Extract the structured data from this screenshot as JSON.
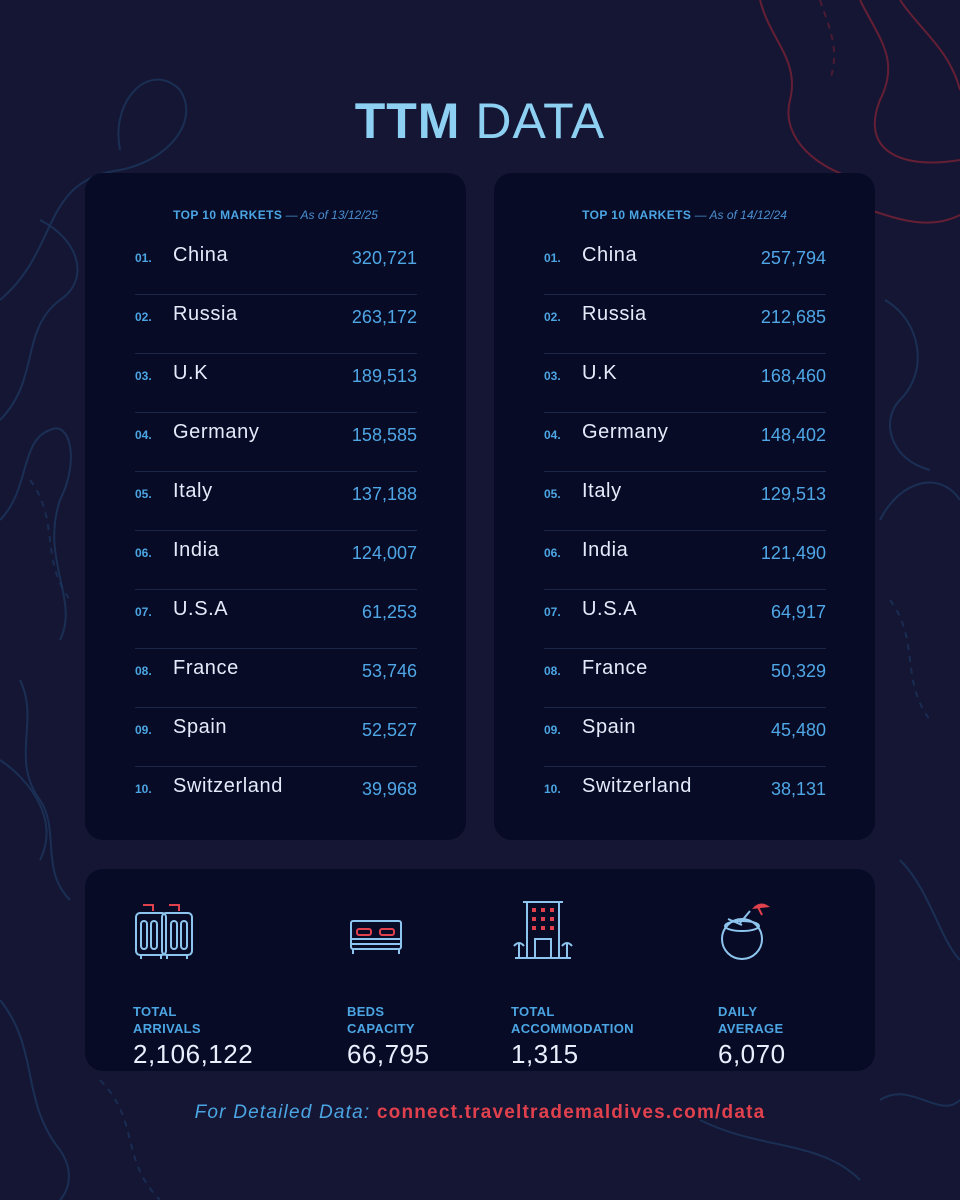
{
  "title": {
    "bold": "TTM",
    "light": "DATA"
  },
  "colors": {
    "background": "#141634",
    "panel": "#070b26",
    "accent_blue": "#4ca5e3",
    "accent_red": "#e1404d"
  },
  "panels": [
    {
      "heading": "TOP 10 MARKETS",
      "date": " — As of 13/12/25",
      "rows": [
        {
          "rank": "01.",
          "name": "China",
          "value": "320,721"
        },
        {
          "rank": "02.",
          "name": "Russia",
          "value": "263,172"
        },
        {
          "rank": "03.",
          "name": "U.K",
          "value": "189,513"
        },
        {
          "rank": "04.",
          "name": "Germany",
          "value": "158,585"
        },
        {
          "rank": "05.",
          "name": "Italy",
          "value": "137,188"
        },
        {
          "rank": "06.",
          "name": "India",
          "value": "124,007"
        },
        {
          "rank": "07.",
          "name": "U.S.A",
          "value": "61,253"
        },
        {
          "rank": "08.",
          "name": "France",
          "value": "53,746"
        },
        {
          "rank": "09.",
          "name": "Spain",
          "value": "52,527"
        },
        {
          "rank": "10.",
          "name": "Switzerland",
          "value": "39,968"
        }
      ]
    },
    {
      "heading": "TOP 10 MARKETS",
      "date": " — As of 14/12/24",
      "rows": [
        {
          "rank": "01.",
          "name": "China",
          "value": "257,794"
        },
        {
          "rank": "02.",
          "name": "Russia",
          "value": "212,685"
        },
        {
          "rank": "03.",
          "name": "U.K",
          "value": "168,460"
        },
        {
          "rank": "04.",
          "name": "Germany",
          "value": "148,402"
        },
        {
          "rank": "05.",
          "name": "Italy",
          "value": "129,513"
        },
        {
          "rank": "06.",
          "name": "India",
          "value": "121,490"
        },
        {
          "rank": "07.",
          "name": "U.S.A",
          "value": "64,917"
        },
        {
          "rank": "08.",
          "name": "France",
          "value": "50,329"
        },
        {
          "rank": "09.",
          "name": "Spain",
          "value": "45,480"
        },
        {
          "rank": "10.",
          "name": "Switzerland",
          "value": "38,131"
        }
      ]
    }
  ],
  "stats": [
    {
      "icon": "luggage-icon",
      "label_line1": "TOTAL",
      "label_line2": "ARRIVALS",
      "value": "2,106,122"
    },
    {
      "icon": "bed-icon",
      "label_line1": "BEDS",
      "label_line2": "CAPACITY",
      "value": "66,795"
    },
    {
      "icon": "hotel-building-icon",
      "label_line1": "TOTAL",
      "label_line2": "ACCOMMODATION",
      "value": "1,315"
    },
    {
      "icon": "coconut-drink-icon",
      "label_line1": "DAILY",
      "label_line2": "AVERAGE",
      "value": "6,070"
    }
  ],
  "footer": {
    "label": "For Detailed Data:",
    "url": "connect.traveltrademaldives.com/data"
  }
}
